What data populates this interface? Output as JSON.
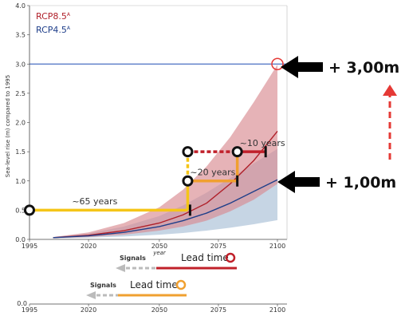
{
  "chart_data": {
    "type": "line",
    "ylabel": "Sea-level rise (m) compared to 1995",
    "xlabel": "year",
    "xlim": [
      1995,
      2100
    ],
    "ylim": [
      0,
      4
    ],
    "x_ticks": [
      "1995",
      "2020",
      "2050",
      "2075",
      "2100"
    ],
    "y_ticks": [
      "0.0",
      "0.5",
      "1.0",
      "1.5",
      "2.0",
      "2.5",
      "3.0",
      "3.5",
      "4.0"
    ],
    "grid": false,
    "legend_position": "top-left",
    "series": [
      {
        "name": "RCP8.5",
        "color": "#b0202a",
        "band_color": "#d98a90",
        "x": [
          2005,
          2020,
          2035,
          2050,
          2060,
          2070,
          2080,
          2090,
          2100
        ],
        "values": [
          0.03,
          0.07,
          0.15,
          0.28,
          0.42,
          0.62,
          0.95,
          1.35,
          1.85
        ],
        "lower": [
          0.02,
          0.04,
          0.08,
          0.15,
          0.22,
          0.32,
          0.48,
          0.68,
          0.95
        ],
        "upper": [
          0.04,
          0.12,
          0.28,
          0.55,
          0.85,
          1.25,
          1.75,
          2.35,
          2.99
        ]
      },
      {
        "name": "RCP4.5",
        "color": "#1f3f8a",
        "band_color": "#a8bfd6",
        "x": [
          2005,
          2020,
          2035,
          2050,
          2060,
          2070,
          2080,
          2090,
          2100
        ],
        "values": [
          0.03,
          0.06,
          0.12,
          0.22,
          0.32,
          0.45,
          0.62,
          0.82,
          1.02
        ],
        "lower": [
          0.02,
          0.03,
          0.05,
          0.08,
          0.11,
          0.15,
          0.2,
          0.26,
          0.33
        ],
        "upper": [
          0.04,
          0.1,
          0.22,
          0.4,
          0.58,
          0.8,
          1.05,
          1.3,
          1.55
        ]
      }
    ],
    "reference_line": {
      "y": 3.0,
      "color": "#4a6fc2"
    },
    "target_marker": {
      "x": 2100,
      "y": 3.0,
      "color": "#e53935"
    },
    "pathways": [
      {
        "color": "#f5c518",
        "points": [
          [
            1995,
            0.5
          ],
          [
            2062,
            0.5
          ],
          [
            2062,
            1.0
          ],
          [
            2062,
            1.5
          ]
        ],
        "dashed_segment": [
          [
            2062,
            1.0
          ],
          [
            2062,
            1.5
          ]
        ]
      },
      {
        "color": "#f0a030",
        "points": [
          [
            2062,
            1.0
          ],
          [
            2083,
            1.0
          ],
          [
            2083,
            1.5
          ]
        ]
      },
      {
        "color": "#c0202a",
        "points": [
          [
            2062,
            1.5
          ],
          [
            2083,
            1.5
          ],
          [
            2095,
            1.5
          ]
        ],
        "dashed_segment": [
          [
            2062,
            1.5
          ],
          [
            2083,
            1.5
          ]
        ]
      }
    ],
    "pathway_nodes": [
      [
        1995,
        0.5
      ],
      [
        2062,
        1.0
      ],
      [
        2062,
        1.5
      ],
      [
        2083,
        1.5
      ]
    ],
    "tipping_ticks": [
      [
        2063,
        0.5
      ],
      [
        2083,
        1.0
      ],
      [
        2095,
        1.5
      ]
    ],
    "annotations": [
      {
        "text": "~65 years",
        "x": 2013,
        "y": 0.6
      },
      {
        "text": "~20 years",
        "x": 2063,
        "y": 1.1
      },
      {
        "text": "~10 years",
        "x": 2084,
        "y": 1.6
      }
    ],
    "callouts": [
      {
        "text": "+ 3,00m",
        "y": 3.0
      },
      {
        "text": "+ 1,00m",
        "y": 1.0
      }
    ]
  },
  "legend": [
    {
      "label": "RCP8.5",
      "sup": "A",
      "color": "#b0202a"
    },
    {
      "label": "RCP4.5",
      "sup": "A",
      "color": "#1f3f8a"
    }
  ],
  "signals_panels": [
    {
      "signals_label": "Signals",
      "lead_label": "Lead time",
      "color": "#c0202a"
    },
    {
      "signals_label": "Signals",
      "lead_label": "Lead time",
      "color": "#f0a030"
    }
  ],
  "bottom_axis": {
    "zero_label": "0.0",
    "ticks": [
      "1995",
      "2020",
      "2050",
      "2075",
      "2100"
    ]
  }
}
